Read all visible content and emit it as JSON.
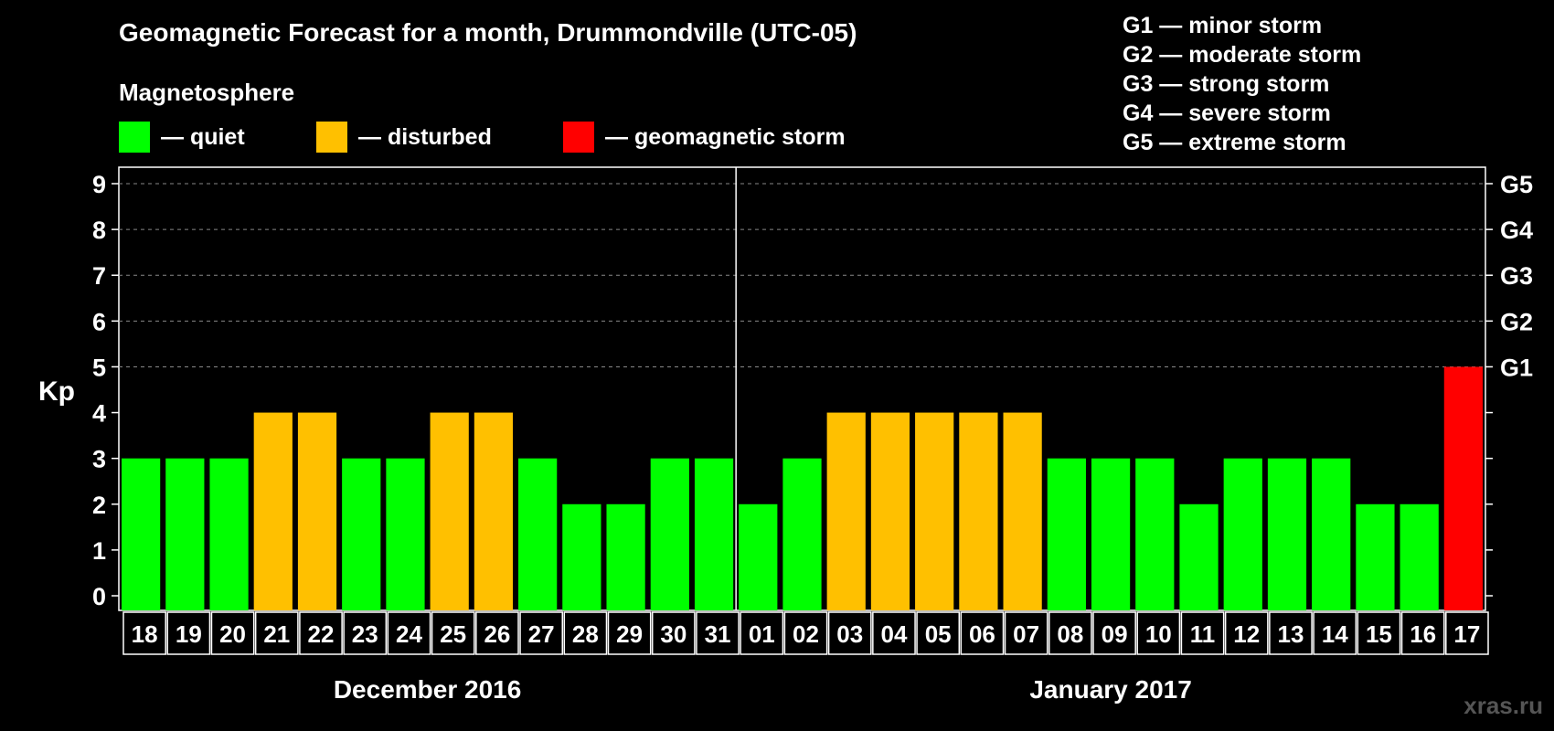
{
  "title": "Geomagnetic Forecast for a month, Drummondville (UTC-05)",
  "magnetosphere_label": "Magnetosphere",
  "legend": [
    {
      "label": "— quiet",
      "color": "#00ff00"
    },
    {
      "label": "— disturbed",
      "color": "#ffc000"
    },
    {
      "label": "— geomagnetic storm",
      "color": "#ff0000"
    }
  ],
  "storm_scale": [
    "G1 — minor storm",
    "G2 — moderate storm",
    "G3 — strong storm",
    "G4 — severe storm",
    "G5 — extreme storm"
  ],
  "watermark": "xras.ru",
  "chart_data": {
    "type": "bar",
    "ylabel": "Kp",
    "ylim": [
      0,
      9
    ],
    "yticks": [
      0,
      1,
      2,
      3,
      4,
      5,
      6,
      7,
      8,
      9
    ],
    "grid": "dashed horizontal at 5–9",
    "right_axis": [
      {
        "kp": 5,
        "label": "G1"
      },
      {
        "kp": 6,
        "label": "G2"
      },
      {
        "kp": 7,
        "label": "G3"
      },
      {
        "kp": 8,
        "label": "G4"
      },
      {
        "kp": 9,
        "label": "G5"
      }
    ],
    "categories": [
      "18",
      "19",
      "20",
      "21",
      "22",
      "23",
      "24",
      "25",
      "26",
      "27",
      "28",
      "29",
      "30",
      "31",
      "01",
      "02",
      "03",
      "04",
      "05",
      "06",
      "07",
      "08",
      "09",
      "10",
      "11",
      "12",
      "13",
      "14",
      "15",
      "16",
      "17"
    ],
    "values": [
      3,
      3,
      3,
      4,
      4,
      3,
      3,
      4,
      4,
      3,
      2,
      2,
      3,
      3,
      2,
      3,
      4,
      4,
      4,
      4,
      4,
      3,
      3,
      3,
      2,
      3,
      3,
      3,
      2,
      2,
      5
    ],
    "colors": {
      "quiet": "#00ff00",
      "disturbed": "#ffc000",
      "storm": "#ff0000"
    },
    "months": [
      {
        "label": "December 2016",
        "start_index": 0,
        "end_index": 13
      },
      {
        "label": "January 2017",
        "start_index": 14,
        "end_index": 30
      }
    ]
  }
}
